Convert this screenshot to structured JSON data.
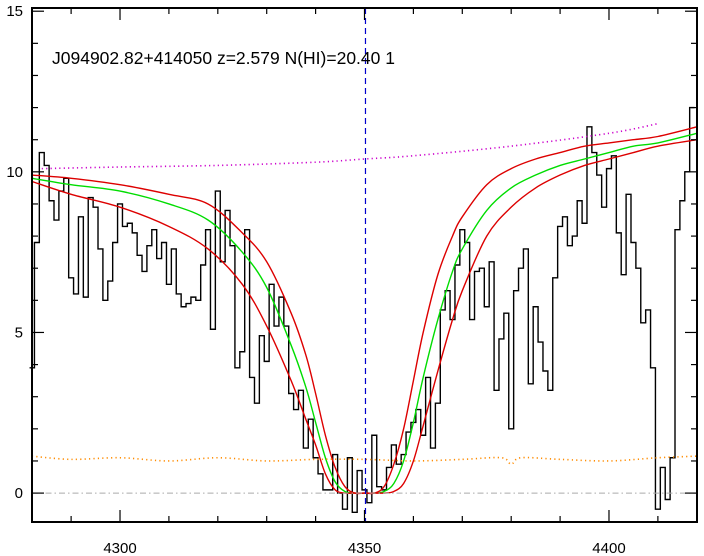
{
  "chart_data": {
    "type": "line",
    "title": "J094902.82+414050 z=2.579 N(HI)=20.40 1",
    "xlabel": "",
    "ylabel": "",
    "xlim": [
      4282,
      4418
    ],
    "ylim": [
      -0.9,
      15.1
    ],
    "xticks": [
      4300,
      4350,
      4400
    ],
    "yticks": [
      0,
      5,
      10,
      15
    ],
    "xtick_labels": [
      "4300",
      "4350",
      "4400"
    ],
    "ytick_labels": [
      "0",
      "5",
      "10",
      "15"
    ],
    "grid": false,
    "legend": "none",
    "absorber_center": 4350.2,
    "series": [
      {
        "role": "flux",
        "style": "step",
        "color": "#000000",
        "x": [
          4282.0,
          4283.0,
          4284.0,
          4285.0,
          4286.0,
          4287.0,
          4288.0,
          4289.0,
          4290.0,
          4291.0,
          4292.0,
          4293.0,
          4294.0,
          4295.0,
          4296.0,
          4297.0,
          4298.0,
          4299.0,
          4300.0,
          4301.0,
          4302.0,
          4303.0,
          4304.0,
          4305.0,
          4306.0,
          4307.0,
          4308.0,
          4309.0,
          4310.0,
          4311.0,
          4312.0,
          4313.0,
          4314.0,
          4315.0,
          4316.0,
          4317.0,
          4318.0,
          4319.0,
          4320.0,
          4321.0,
          4322.0,
          4323.0,
          4324.0,
          4325.0,
          4326.0,
          4327.0,
          4328.0,
          4329.0,
          4330.0,
          4331.0,
          4332.0,
          4333.0,
          4334.0,
          4335.0,
          4336.0,
          4337.0,
          4338.0,
          4339.0,
          4340.0,
          4341.0,
          4342.0,
          4343.0,
          4344.0,
          4345.0,
          4346.0,
          4347.0,
          4348.0,
          4349.0,
          4350.0,
          4351.0,
          4352.0,
          4353.0,
          4354.0,
          4355.0,
          4356.0,
          4357.0,
          4358.0,
          4359.0,
          4360.0,
          4361.0,
          4362.0,
          4363.0,
          4364.0,
          4365.0,
          4366.0,
          4367.0,
          4368.0,
          4369.0,
          4370.0,
          4371.0,
          4372.0,
          4373.0,
          4374.0,
          4375.0,
          4376.0,
          4377.0,
          4378.0,
          4379.0,
          4380.0,
          4381.0,
          4382.0,
          4383.0,
          4384.0,
          4385.0,
          4386.0,
          4387.0,
          4388.0,
          4389.0,
          4390.0,
          4391.0,
          4392.0,
          4393.0,
          4394.0,
          4395.0,
          4396.0,
          4397.0,
          4398.0,
          4399.0,
          4400.0,
          4401.0,
          4402.0,
          4403.0,
          4404.0,
          4405.0,
          4406.0,
          4407.0,
          4408.0,
          4409.0,
          4410.0,
          4411.0,
          4412.0,
          4413.0,
          4414.0,
          4415.0,
          4416.0,
          4417.0
        ],
        "y": [
          3.9,
          7.8,
          10.6,
          10.2,
          9.1,
          8.5,
          9.4,
          9.8,
          6.7,
          6.2,
          8.6,
          6.1,
          9.2,
          8.9,
          7.6,
          6.0,
          6.6,
          7.8,
          9.0,
          8.3,
          8.4,
          8.1,
          7.4,
          6.9,
          7.7,
          8.2,
          7.3,
          7.8,
          6.5,
          7.6,
          6.2,
          5.8,
          5.9,
          6.1,
          6.0,
          7.1,
          8.2,
          5.1,
          9.4,
          7.2,
          8.8,
          7.7,
          3.9,
          4.4,
          8.2,
          3.6,
          2.8,
          4.9,
          4.1,
          6.5,
          5.2,
          6.1,
          5.2,
          3.1,
          2.6,
          3.2,
          1.4,
          2.3,
          1.1,
          0.6,
          0.1,
          0.1,
          1.2,
          0.0,
          -0.5,
          1.1,
          -0.6,
          0.7,
          0.1,
          -0.3,
          1.8,
          0.2,
          0.1,
          0.8,
          1.5,
          0.9,
          1.2,
          1.9,
          2.2,
          2.6,
          1.8,
          3.6,
          1.4,
          2.8,
          5.7,
          6.3,
          5.4,
          7.1,
          8.2,
          7.8,
          5.4,
          6.9,
          7.0,
          5.8,
          7.2,
          3.2,
          4.8,
          5.6,
          2.0,
          6.3,
          7.0,
          7.6,
          3.4,
          5.8,
          4.7,
          3.8,
          3.2,
          6.7,
          8.3,
          8.6,
          7.7,
          8.0,
          9.1,
          8.4,
          11.4,
          10.6,
          9.9,
          8.9,
          10.1,
          10.5,
          8.1,
          6.8,
          9.3,
          7.8,
          7.0,
          5.3,
          5.7,
          3.9,
          -0.5,
          0.8,
          -0.2,
          1.1,
          8.2,
          9.1,
          10.0,
          12.0
        ]
      },
      {
        "role": "model",
        "style": "smooth",
        "color": "#00dd00",
        "x": [
          4282,
          4290,
          4300,
          4310,
          4318,
          4325,
          4330,
          4335,
          4338,
          4340,
          4342,
          4344,
          4346,
          4348,
          4350,
          4352,
          4354,
          4356,
          4358,
          4360,
          4362,
          4365,
          4368,
          4370,
          4375,
          4380,
          4385,
          4390,
          4395,
          4400,
          4405,
          4410,
          4418
        ],
        "y": [
          9.8,
          9.6,
          9.4,
          9.0,
          8.5,
          7.5,
          6.4,
          4.6,
          3.3,
          2.2,
          1.1,
          0.35,
          0.05,
          0.0,
          0.0,
          0.0,
          0.05,
          0.3,
          1.0,
          2.2,
          3.6,
          5.4,
          6.9,
          7.6,
          8.8,
          9.5,
          9.9,
          10.2,
          10.4,
          10.6,
          10.8,
          10.9,
          11.2
        ]
      },
      {
        "role": "model-upper",
        "style": "smooth",
        "color": "#dd0000",
        "x": [
          4282,
          4290,
          4300,
          4310,
          4318,
          4325,
          4330,
          4335,
          4338,
          4340,
          4342,
          4344,
          4346,
          4348,
          4350,
          4352,
          4354,
          4356,
          4358,
          4360,
          4362,
          4365,
          4368,
          4370,
          4375,
          4380,
          4385,
          4390,
          4395,
          4400,
          4405,
          4410,
          4418
        ],
        "y": [
          9.9,
          9.8,
          9.6,
          9.3,
          9.0,
          8.1,
          7.2,
          5.6,
          4.3,
          3.1,
          1.8,
          0.8,
          0.2,
          0.0,
          0.0,
          0.0,
          0.2,
          0.9,
          2.0,
          3.5,
          5.0,
          6.8,
          8.0,
          8.6,
          9.6,
          10.1,
          10.4,
          10.6,
          10.8,
          10.9,
          11.0,
          11.1,
          11.4
        ]
      },
      {
        "role": "model-lower",
        "style": "smooth",
        "color": "#dd0000",
        "x": [
          4282,
          4290,
          4300,
          4310,
          4318,
          4325,
          4330,
          4335,
          4338,
          4340,
          4342,
          4344,
          4346,
          4348,
          4350,
          4352,
          4354,
          4356,
          4358,
          4360,
          4362,
          4365,
          4368,
          4370,
          4375,
          4380,
          4385,
          4390,
          4395,
          4400,
          4405,
          4410,
          4418
        ],
        "y": [
          9.7,
          9.3,
          8.9,
          8.3,
          7.6,
          6.5,
          5.2,
          3.5,
          2.3,
          1.5,
          0.6,
          0.1,
          0.0,
          0.0,
          0.0,
          0.0,
          0.0,
          0.05,
          0.3,
          1.0,
          2.1,
          3.8,
          5.4,
          6.3,
          8.0,
          8.9,
          9.5,
          9.9,
          10.2,
          10.4,
          10.6,
          10.8,
          11.0
        ]
      },
      {
        "role": "continuum",
        "style": "dotted",
        "color": "#cc00cc",
        "x": [
          4284,
          4300,
          4320,
          4340,
          4350,
          4360,
          4380,
          4400,
          4410
        ],
        "y": [
          10.1,
          10.15,
          10.2,
          10.3,
          10.4,
          10.5,
          10.8,
          11.2,
          11.5
        ]
      },
      {
        "role": "error",
        "style": "dotted",
        "color": "#ff8c00",
        "x": [
          4282,
          4290,
          4300,
          4310,
          4320,
          4330,
          4340,
          4350,
          4360,
          4370,
          4378,
          4380,
          4382,
          4390,
          4400,
          4410,
          4418
        ],
        "y": [
          1.15,
          1.05,
          1.1,
          1.0,
          1.1,
          1.0,
          1.05,
          1.05,
          1.0,
          1.05,
          1.1,
          0.9,
          1.1,
          1.05,
          1.0,
          1.1,
          1.15
        ]
      },
      {
        "role": "zero-level",
        "style": "dashdot",
        "color": "#aaaaaa",
        "x": [
          4282,
          4418
        ],
        "y": [
          0,
          0
        ]
      }
    ]
  }
}
